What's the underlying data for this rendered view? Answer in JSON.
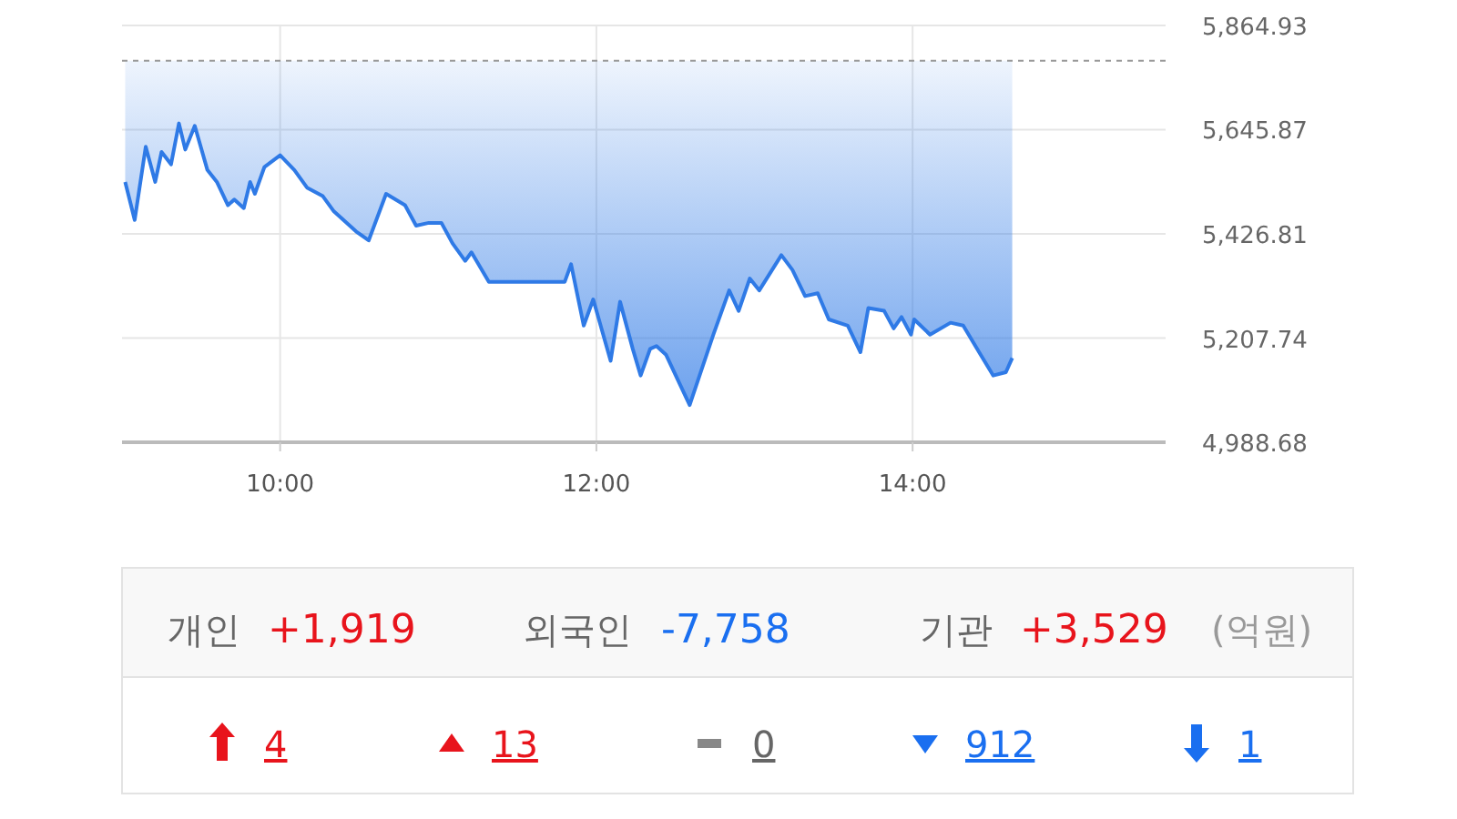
{
  "chart_data": [
    {
      "type": "line",
      "grid": true,
      "tick_labels": "xy",
      "x": [
        9.02,
        9.08,
        9.15,
        9.21,
        9.25,
        9.31,
        9.36,
        9.4,
        9.46,
        9.54,
        9.6,
        9.67,
        9.71,
        9.77,
        9.81,
        9.84,
        9.9,
        10.0,
        10.09,
        10.17,
        10.27,
        10.34,
        10.48,
        10.56,
        10.67,
        10.79,
        10.86,
        10.94,
        11.02,
        11.09,
        11.17,
        11.21,
        11.32,
        11.8,
        11.84,
        11.92,
        11.98,
        12.09,
        12.15,
        12.23,
        12.28,
        12.34,
        12.38,
        12.44,
        12.59,
        12.74,
        12.84,
        12.9,
        12.97,
        13.03,
        13.17,
        13.24,
        13.32,
        13.4,
        13.47,
        13.59,
        13.67,
        13.72,
        13.82,
        13.88,
        13.93,
        13.99,
        14.01,
        14.11,
        14.24,
        14.32,
        14.43,
        14.51,
        14.59,
        14.63
      ],
      "series": [
        {
          "color": "#2f7ae6",
          "values": [
            5536,
            5456,
            5610,
            5536,
            5599,
            5573,
            5659,
            5604,
            5654,
            5561,
            5536,
            5487,
            5499,
            5481,
            5536,
            5511,
            5567,
            5592,
            5561,
            5524,
            5506,
            5474,
            5432,
            5413,
            5511,
            5487,
            5444,
            5450,
            5450,
            5407,
            5370,
            5388,
            5326,
            5326,
            5363,
            5234,
            5289,
            5160,
            5284,
            5185,
            5129,
            5185,
            5191,
            5173,
            5067,
            5215,
            5308,
            5265,
            5333,
            5308,
            5382,
            5351,
            5296,
            5302,
            5247,
            5234,
            5178,
            5271,
            5265,
            5228,
            5252,
            5215,
            5247,
            5215,
            5240,
            5234,
            5173,
            5129,
            5136,
            5166
          ],
          "lower": [
            5536,
            5456,
            5610,
            5536,
            5599,
            5573,
            5659,
            5604,
            5654,
            5561,
            5536,
            5487,
            5499,
            5481,
            5536,
            5511,
            5567,
            5592,
            5561,
            5524,
            5506,
            5474,
            5432,
            5413,
            5511,
            5487,
            5444,
            5450,
            5450,
            5407,
            5370,
            5388,
            5326,
            5326,
            5363,
            5234,
            5289,
            5160,
            5284,
            5185,
            5129,
            5185,
            5191,
            5173,
            5067,
            5215,
            5308,
            5265,
            5333,
            5308,
            5382,
            5351,
            5296,
            5302,
            5247,
            5234,
            5178,
            5271,
            5265,
            5228,
            5252,
            5215,
            5247,
            5215,
            5240,
            5234,
            5173,
            5129,
            5136,
            5166
          ],
          "upper": [
            5791,
            5791,
            5791,
            5791,
            5791,
            5791,
            5791,
            5791,
            5791,
            5791,
            5791,
            5791,
            5791,
            5791,
            5791,
            5791,
            5791,
            5791,
            5791,
            5791,
            5791,
            5791,
            5791,
            5791,
            5791,
            5791,
            5791,
            5791,
            5791,
            5791,
            5791,
            5791,
            5791,
            5791,
            5791,
            5791,
            5791,
            5791,
            5791,
            5791,
            5791,
            5791,
            5791,
            5791,
            5791,
            5791,
            5791,
            5791,
            5791,
            5791,
            5791,
            5791,
            5791,
            5791,
            5791,
            5791,
            5791,
            5791,
            5791,
            5791,
            5791,
            5791,
            5791,
            5791,
            5791,
            5791,
            5791,
            5791,
            5791,
            5791
          ]
        }
      ],
      "xlim": [
        9,
        15.6
      ],
      "xticks": [
        {
          "value": 10,
          "label": "10:00"
        },
        {
          "value": 12,
          "label": "12:00"
        },
        {
          "value": 14,
          "label": "14:00"
        }
      ],
      "ylim": [
        4988.68,
        5864.93
      ],
      "yticks": [
        {
          "value": 4988.68,
          "label": "4,988.68"
        },
        {
          "value": 5207.74,
          "label": "5,207.74"
        },
        {
          "value": 5426.81,
          "label": "5,426.81"
        },
        {
          "value": 5645.87,
          "label": "5,645.87"
        },
        {
          "value": 5864.93,
          "label": "5,864.93"
        }
      ],
      "ref_lines": [
        {
          "axis": "y",
          "value": 5791,
          "color": "#999999",
          "line_style": "dashed"
        }
      ]
    },
    {
      "type": "other",
      "annotations": [
        "개인",
        "+1,919",
        "외국인",
        "-7,758",
        "기관",
        "+3,529",
        "(억원)",
        "4",
        "13",
        "0",
        "912",
        "1"
      ],
      "colors": [
        "#666666",
        "#e8141c",
        "#666666",
        "#1a6ff0",
        "#666666",
        "#e8141c",
        "#999999",
        "#e8141c",
        "#e8141c",
        "#666666",
        "#1a6ff0",
        "#1a6ff0"
      ]
    }
  ]
}
